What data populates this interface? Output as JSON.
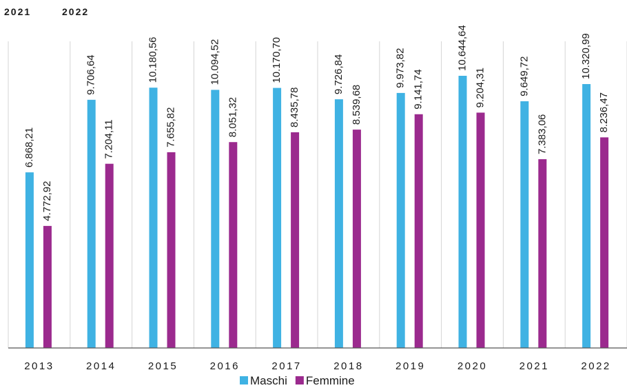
{
  "chart_data": {
    "type": "bar",
    "annotations": [
      "2021",
      "2022"
    ],
    "categories": [
      "2013",
      "2014",
      "2015",
      "2016",
      "2017",
      "2018",
      "2019",
      "2020",
      "2021",
      "2022"
    ],
    "series": [
      {
        "name": "Maschi",
        "color": "#3fb2e3",
        "values": [
          6868.21,
          9706.64,
          10180.56,
          10094.52,
          10170.7,
          9726.84,
          9973.82,
          10644.64,
          9649.72,
          10320.99
        ],
        "value_labels": [
          "6.868,21",
          "9.706,64",
          "10.180,56",
          "10.094,52",
          "10.170,70",
          "9.726,84",
          "9.973,82",
          "10.644,64",
          "9.649,72",
          "10.320,99"
        ]
      },
      {
        "name": "Femmine",
        "color": "#9b2a8e",
        "values": [
          4772.92,
          7204.11,
          7655.82,
          8051.32,
          8435.78,
          8539.68,
          9141.74,
          9204.31,
          7383.06,
          8236.47
        ],
        "value_labels": [
          "4.772,92",
          "7.204,11",
          "7.655,82",
          "8.051,32",
          "8.435,78",
          "8.539,68",
          "9.141,74",
          "9.204,31",
          "7.383,06",
          "8.236,47"
        ]
      }
    ],
    "legend": "bottom"
  }
}
